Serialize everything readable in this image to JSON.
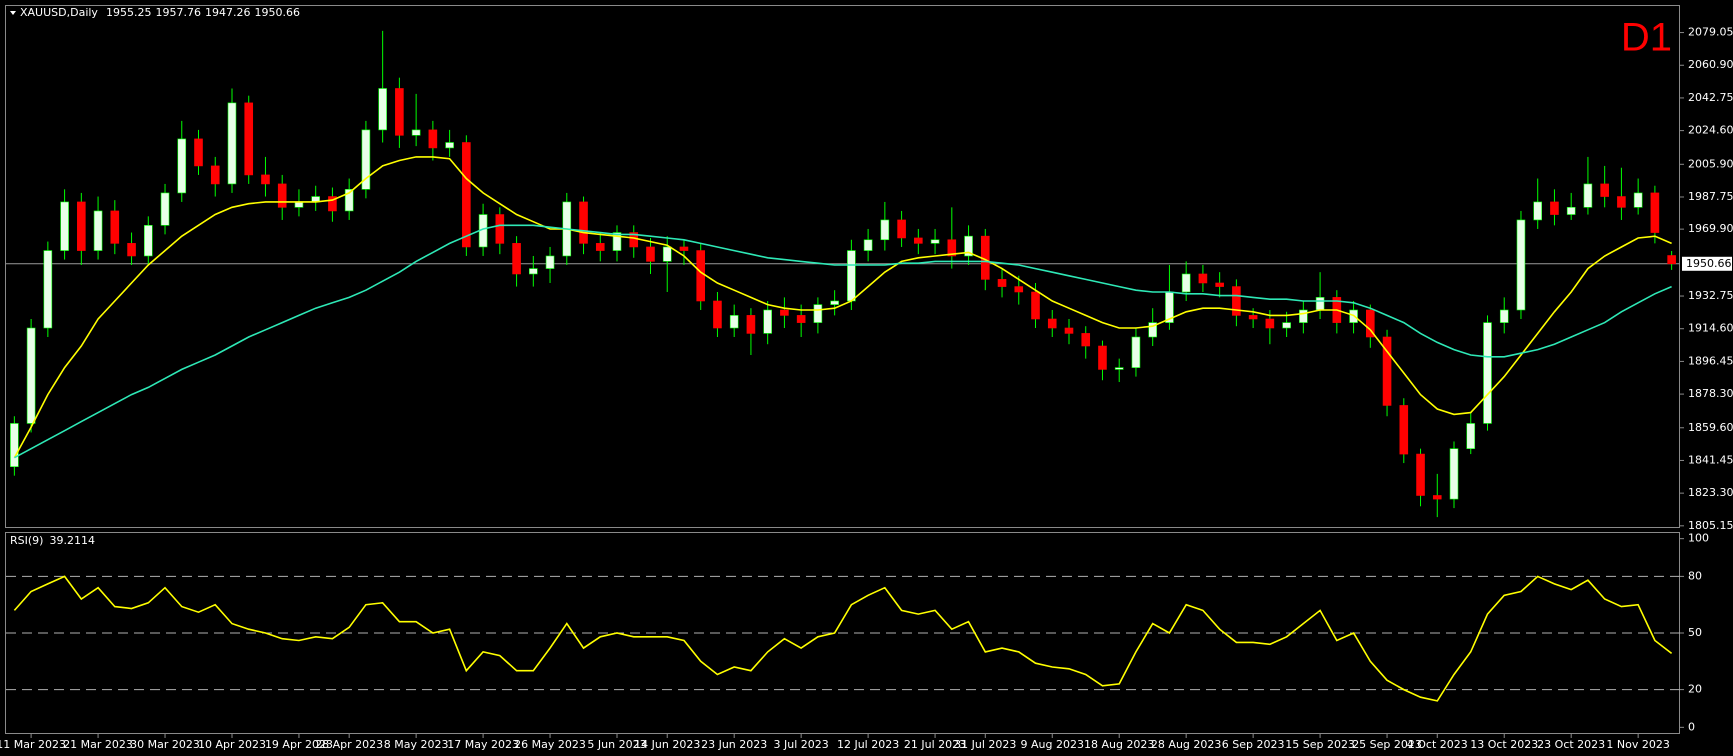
{
  "chart_data": [
    {
      "type": "candlestick",
      "title": "XAUUSD,Daily",
      "timeframe": "D1",
      "up_color": "#e8ffe8",
      "down_color": "#ff0000",
      "wick_color": "#00ff00",
      "categories": [
        null,
        "11 Mar 2023",
        null,
        null,
        null,
        "21 Mar 2023",
        null,
        null,
        null,
        "30 Mar 2023",
        null,
        null,
        null,
        "10 Apr 2023",
        null,
        null,
        null,
        "19 Apr 2023",
        null,
        null,
        "28 Apr 2023",
        null,
        null,
        null,
        "8 May 2023",
        null,
        null,
        null,
        "17 May 2023",
        null,
        null,
        null,
        "26 May 2023",
        null,
        null,
        null,
        "5 Jun 2023",
        null,
        null,
        "14 Jun 2023",
        null,
        null,
        null,
        "23 Jun 2023",
        null,
        null,
        null,
        "3 Jul 2023",
        null,
        null,
        null,
        "12 Jul 2023",
        null,
        null,
        null,
        "21 Jul 2023",
        null,
        null,
        "31 Jul 2023",
        null,
        null,
        null,
        "9 Aug 2023",
        null,
        null,
        null,
        "18 Aug 2023",
        null,
        null,
        null,
        "28 Aug 2023",
        null,
        null,
        null,
        "6 Sep 2023",
        null,
        null,
        null,
        "15 Sep 2023",
        null,
        null,
        null,
        "25 Sep 2023",
        null,
        null,
        "4 Oct 2023",
        null,
        null,
        null,
        "13 Oct 2023",
        null,
        null,
        null,
        "23 Oct 2023",
        null,
        null,
        null,
        "1 Nov 2023",
        null,
        null
      ],
      "open": [
        1838,
        1862,
        1915,
        1958,
        1985,
        1958,
        1980,
        1962,
        1955,
        1972,
        1990,
        2020,
        2005,
        1995,
        2040,
        2000,
        1995,
        1982,
        1985,
        1988,
        1980,
        1992,
        2025,
        2048,
        2022,
        2025,
        2015,
        2018,
        1960,
        1978,
        1962,
        1945,
        1948,
        1955,
        1985,
        1962,
        1958,
        1968,
        1960,
        1952,
        1960,
        1958,
        1930,
        1915,
        1922,
        1912,
        1925,
        1922,
        1918,
        1928,
        1930,
        1958,
        1964,
        1975,
        1965,
        1962,
        1964,
        1955,
        1966,
        1942,
        1938,
        1935,
        1920,
        1915,
        1912,
        1905,
        1892,
        1893,
        1910,
        1918,
        1935,
        1945,
        1940,
        1938,
        1922,
        1920,
        1915,
        1918,
        1925,
        1932,
        1918,
        1925,
        1910,
        1872,
        1845,
        1822,
        1820,
        1848,
        1862,
        1918,
        1925,
        1975,
        1985,
        1978,
        1982,
        1995,
        1988,
        1982,
        1990,
        1955.25
      ],
      "high": [
        1866,
        1920,
        1963,
        1992,
        1990,
        1988,
        1986,
        1968,
        1977,
        1995,
        2030,
        2025,
        2010,
        2048,
        2044,
        2010,
        2000,
        1992,
        1994,
        1993,
        1998,
        2030,
        2080,
        2054,
        2045,
        2030,
        2025,
        2022,
        1984,
        1982,
        1966,
        1955,
        1960,
        1990,
        1988,
        1968,
        1972,
        1972,
        1965,
        1966,
        1964,
        1962,
        1935,
        1928,
        1926,
        1930,
        1932,
        1928,
        1932,
        1936,
        1964,
        1970,
        1985,
        1980,
        1970,
        1970,
        1982,
        1972,
        1970,
        1948,
        1944,
        1940,
        1925,
        1920,
        1916,
        1908,
        1898,
        1915,
        1926,
        1950,
        1952,
        1950,
        1946,
        1942,
        1926,
        1925,
        1924,
        1930,
        1946,
        1936,
        1930,
        1928,
        1914,
        1876,
        1848,
        1834,
        1852,
        1868,
        1922,
        1932,
        1980,
        1998,
        1992,
        1990,
        2010,
        2005,
        2004,
        1998,
        1994,
        1957.76
      ],
      "low": [
        1833,
        1857,
        1910,
        1953,
        1950,
        1953,
        1956,
        1950,
        1950,
        1967,
        1985,
        2000,
        1988,
        1990,
        1995,
        1988,
        1975,
        1977,
        1980,
        1974,
        1975,
        1987,
        2018,
        2015,
        2016,
        2008,
        2010,
        1955,
        1955,
        1956,
        1938,
        1938,
        1940,
        1950,
        1956,
        1952,
        1952,
        1954,
        1945,
        1935,
        1950,
        1925,
        1910,
        1910,
        1900,
        1906,
        1915,
        1910,
        1912,
        1922,
        1925,
        1952,
        1958,
        1960,
        1956,
        1956,
        1948,
        1950,
        1936,
        1932,
        1928,
        1915,
        1910,
        1906,
        1898,
        1886,
        1885,
        1888,
        1905,
        1914,
        1930,
        1935,
        1932,
        1916,
        1915,
        1906,
        1910,
        1912,
        1920,
        1912,
        1912,
        1904,
        1866,
        1840,
        1816,
        1810,
        1815,
        1845,
        1858,
        1912,
        1920,
        1970,
        1972,
        1975,
        1978,
        1982,
        1975,
        1978,
        1962,
        1947.26
      ],
      "close": [
        1862,
        1915,
        1958,
        1985,
        1958,
        1980,
        1962,
        1955,
        1972,
        1990,
        2020,
        2005,
        1995,
        2040,
        2000,
        1995,
        1982,
        1985,
        1988,
        1980,
        1992,
        2025,
        2048,
        2022,
        2025,
        2015,
        2018,
        1960,
        1978,
        1962,
        1945,
        1948,
        1955,
        1985,
        1962,
        1958,
        1968,
        1960,
        1952,
        1960,
        1958,
        1930,
        1915,
        1922,
        1912,
        1925,
        1922,
        1918,
        1928,
        1930,
        1958,
        1964,
        1975,
        1965,
        1962,
        1964,
        1955,
        1966,
        1942,
        1938,
        1935,
        1920,
        1915,
        1912,
        1905,
        1892,
        1893,
        1910,
        1918,
        1935,
        1945,
        1940,
        1938,
        1922,
        1920,
        1915,
        1918,
        1925,
        1932,
        1918,
        1925,
        1910,
        1872,
        1845,
        1822,
        1820,
        1848,
        1862,
        1918,
        1925,
        1975,
        1985,
        1978,
        1982,
        1995,
        1988,
        1982,
        1990,
        1968,
        1950.66
      ],
      "series": [
        {
          "color": "#ffff00",
          "values": [
            1843,
            1860,
            1878,
            1893,
            1905,
            1920,
            1930,
            1940,
            1950,
            1958,
            1966,
            1972,
            1978,
            1982,
            1984,
            1985,
            1985,
            1985,
            1985,
            1986,
            1990,
            1998,
            2005,
            2008,
            2010,
            2010,
            2009,
            1998,
            1990,
            1984,
            1978,
            1974,
            1970,
            1970,
            1968,
            1967,
            1966,
            1965,
            1963,
            1961,
            1955,
            1946,
            1940,
            1936,
            1932,
            1928,
            1926,
            1925,
            1925,
            1926,
            1930,
            1938,
            1946,
            1952,
            1954,
            1955,
            1956,
            1957,
            1953,
            1948,
            1942,
            1936,
            1930,
            1926,
            1922,
            1918,
            1915,
            1915,
            1916,
            1920,
            1924,
            1926,
            1926,
            1925,
            1924,
            1922,
            1922,
            1923,
            1925,
            1925,
            1922,
            1914,
            1902,
            1890,
            1878,
            1870,
            1867,
            1868,
            1878,
            1888,
            1900,
            1912,
            1924,
            1935,
            1948,
            1955,
            1960,
            1965,
            1966,
            1962
          ]
        },
        {
          "color": "#2ee8b6",
          "values": [
            1843,
            1848,
            1853,
            1858,
            1863,
            1868,
            1873,
            1878,
            1882,
            1887,
            1892,
            1896,
            1900,
            1905,
            1910,
            1914,
            1918,
            1922,
            1926,
            1929,
            1932,
            1936,
            1941,
            1946,
            1952,
            1957,
            1962,
            1966,
            1970,
            1972,
            1972,
            1972,
            1971,
            1970,
            1969,
            1968,
            1967,
            1967,
            1966,
            1965,
            1964,
            1962,
            1960,
            1958,
            1956,
            1954,
            1953,
            1952,
            1951,
            1950,
            1950,
            1950,
            1950,
            1951,
            1951,
            1952,
            1952,
            1952,
            1952,
            1951,
            1950,
            1948,
            1946,
            1944,
            1942,
            1940,
            1938,
            1936,
            1935,
            1935,
            1934,
            1934,
            1933,
            1933,
            1932,
            1931,
            1931,
            1930,
            1930,
            1930,
            1929,
            1926,
            1922,
            1918,
            1912,
            1907,
            1903,
            1900,
            1899,
            1899,
            1901,
            1903,
            1906,
            1910,
            1914,
            1918,
            1924,
            1929,
            1934,
            1938
          ]
        }
      ],
      "ylim": [
        1804.5,
        2093.8
      ],
      "yticks": [
        1805.15,
        {
          "value": 1823.3,
          "label": "1823.30"
        },
        1841.45,
        {
          "value": 1859.6,
          "label": "1859.60"
        },
        {
          "value": 1878.3,
          "label": "1878.30"
        },
        1896.45,
        {
          "value": 1914.6,
          "label": "1914.60"
        },
        1932.75,
        {
          "value": 1969.9,
          "label": "1969.90"
        },
        1987.75,
        {
          "value": 2005.9,
          "label": "2005.90"
        },
        {
          "value": 2024.6,
          "label": "2024.60"
        },
        2042.75,
        {
          "value": 2060.9,
          "label": "2060.90"
        },
        2079.05
      ]
    },
    {
      "type": "line",
      "title": "RSI(9)",
      "series": [
        {
          "color": "#ffff00",
          "values": [
            62,
            72,
            76,
            80,
            68,
            74,
            64,
            63,
            66,
            74,
            64,
            61,
            65,
            55,
            52,
            50,
            47,
            46,
            48,
            47,
            53,
            65,
            66,
            56,
            56,
            50,
            52,
            30,
            40,
            38,
            30,
            30,
            42,
            55,
            42,
            48,
            50,
            48,
            48,
            48,
            46,
            35,
            28,
            32,
            30,
            40,
            47,
            42,
            48,
            50,
            65,
            70,
            74,
            62,
            60,
            62,
            52,
            56,
            40,
            42,
            40,
            34,
            32,
            31,
            28,
            22,
            23,
            40,
            55,
            50,
            65,
            62,
            52,
            45,
            45,
            44,
            48,
            55,
            62,
            46,
            50,
            35,
            25,
            20,
            16,
            14,
            28,
            40,
            60,
            70,
            72,
            80,
            76,
            73,
            78,
            68,
            64,
            65,
            46,
            39.2114
          ]
        }
      ],
      "levels": [
        20,
        50,
        80
      ],
      "ylim": [
        -3,
        103
      ],
      "yticks": [
        0,
        20,
        50,
        80,
        100
      ]
    }
  ]
}
